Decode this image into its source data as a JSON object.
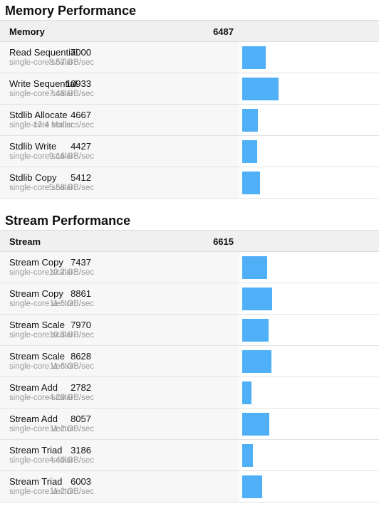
{
  "max_score": 40000,
  "accent_color": "#4fb0f7",
  "memory": {
    "title": "Memory Performance",
    "header": {
      "name": "Memory",
      "score": "6487"
    },
    "rows": [
      {
        "name": "Read Sequential",
        "sub": "single-core scalar",
        "score": "7000",
        "rate": "8.57 GB/sec",
        "value": 7000
      },
      {
        "name": "Write Sequential",
        "sub": "single-core scalar",
        "score": "10933",
        "rate": "7.48 GB/sec",
        "value": 10933
      },
      {
        "name": "Stdlib Allocate",
        "sub": "single-core scalar",
        "score": "4667",
        "rate": "17.4 Mallocs/sec",
        "value": 4667
      },
      {
        "name": "Stdlib Write",
        "sub": "single-core scalar",
        "score": "4427",
        "rate": "9.16 GB/sec",
        "value": 4427
      },
      {
        "name": "Stdlib Copy",
        "sub": "single-core scalar",
        "score": "5412",
        "rate": "5.58 GB/sec",
        "value": 5412
      }
    ]
  },
  "stream": {
    "title": "Stream Performance",
    "header": {
      "name": "Stream",
      "score": "6615"
    },
    "rows": [
      {
        "name": "Stream Copy",
        "sub": "single-core scalar",
        "score": "7437",
        "rate": "10.2 GB/sec",
        "value": 7437
      },
      {
        "name": "Stream Copy",
        "sub": "single-core vector",
        "score": "8861",
        "rate": "11.5 GB/sec",
        "value": 8861
      },
      {
        "name": "Stream Scale",
        "sub": "single-core scalar",
        "score": "7970",
        "rate": "10.3 GB/sec",
        "value": 7970
      },
      {
        "name": "Stream Scale",
        "sub": "single-core vector",
        "score": "8628",
        "rate": "11.6 GB/sec",
        "value": 8628
      },
      {
        "name": "Stream Add",
        "sub": "single-core scalar",
        "score": "2782",
        "rate": "4.20 GB/sec",
        "value": 2782
      },
      {
        "name": "Stream Add",
        "sub": "single-core vector",
        "score": "8057",
        "rate": "11.2 GB/sec",
        "value": 8057
      },
      {
        "name": "Stream Triad",
        "sub": "single-core scalar",
        "score": "3186",
        "rate": "4.40 GB/sec",
        "value": 3186
      },
      {
        "name": "Stream Triad",
        "sub": "single-core vector",
        "score": "6003",
        "rate": "11.2 GB/sec",
        "value": 6003
      }
    ]
  }
}
